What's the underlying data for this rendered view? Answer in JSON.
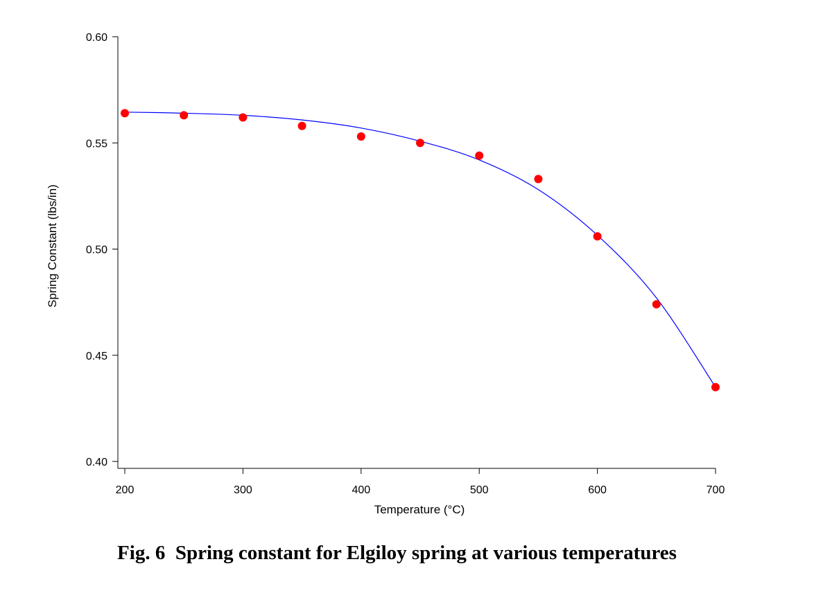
{
  "figure": {
    "caption": "Fig. 6  Spring constant for Elgiloy spring at various temperatures"
  },
  "chart_data": {
    "type": "scatter",
    "xlabel": "Temperature (°C)",
    "ylabel": "Spring Constant (lbs/in)",
    "xlim": [
      200,
      700
    ],
    "ylim": [
      0.4,
      0.6
    ],
    "x_ticks": [
      "200",
      "300",
      "400",
      "500",
      "600",
      "700"
    ],
    "y_ticks": [
      "0.40",
      "0.45",
      "0.50",
      "0.55",
      "0.60"
    ],
    "grid": false,
    "series": [
      {
        "kind": "points",
        "color": "#ff0000",
        "x": [
          200,
          250,
          300,
          350,
          400,
          450,
          500,
          550,
          600,
          650,
          700
        ],
        "y": [
          0.564,
          0.563,
          0.562,
          0.558,
          0.553,
          0.55,
          0.544,
          0.533,
          0.506,
          0.474,
          0.435
        ]
      },
      {
        "kind": "fit-line",
        "color": "#0000ff",
        "x": [
          200,
          250,
          300,
          350,
          400,
          450,
          500,
          550,
          600,
          650,
          700
        ],
        "y": [
          0.5645,
          0.564,
          0.563,
          0.5608,
          0.557,
          0.5508,
          0.542,
          0.528,
          0.5065,
          0.477,
          0.435
        ]
      }
    ]
  }
}
